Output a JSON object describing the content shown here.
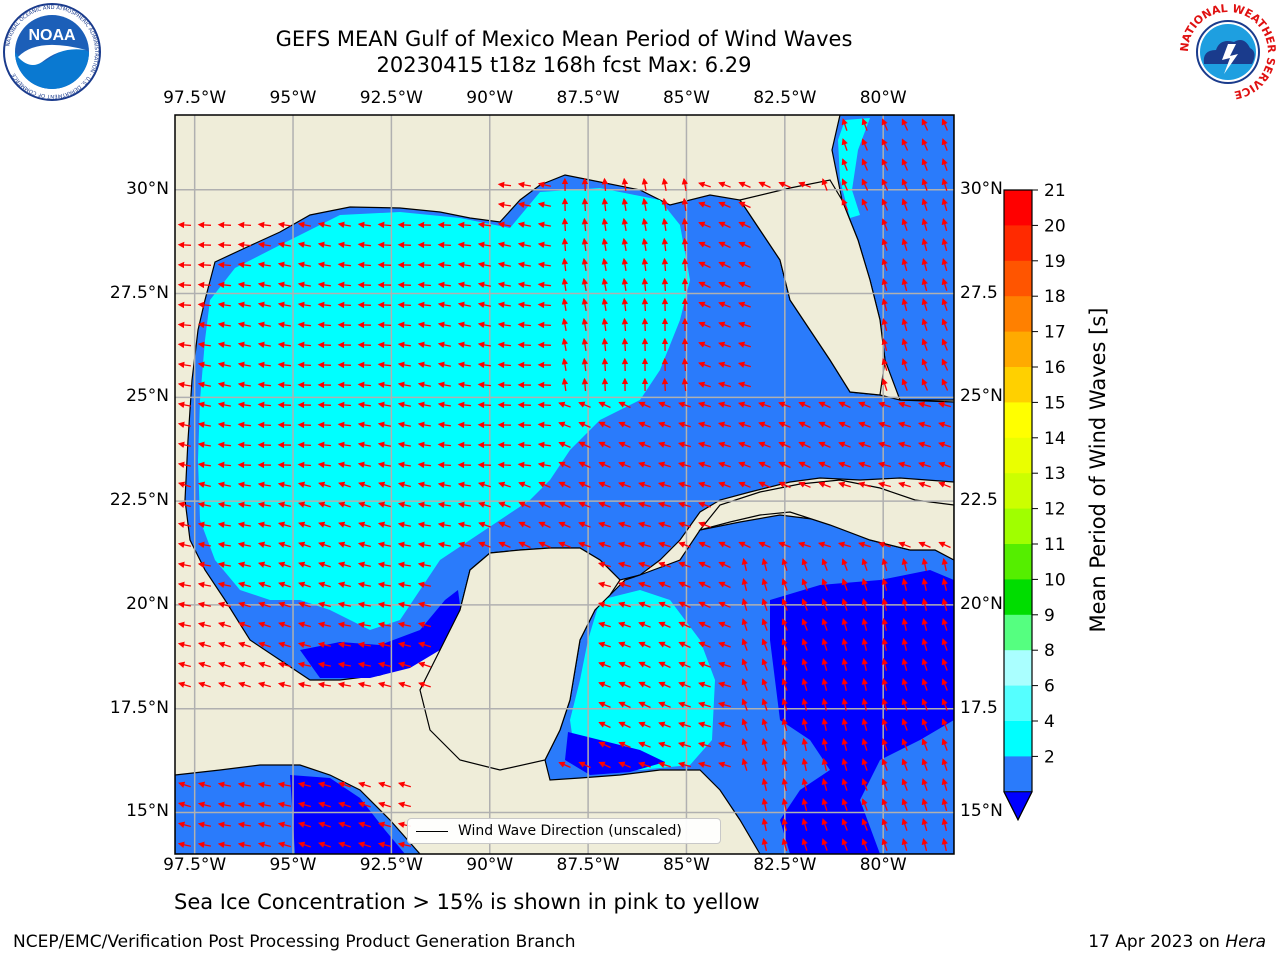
{
  "title": {
    "line1": "GEFS MEAN Gulf of Mexico Mean Period of Wind Waves",
    "line2": "20230415 t18z 168h fcst   Max: 6.29"
  },
  "logos": {
    "left": {
      "icon": "noaa-logo-icon",
      "text": "NOAA",
      "ring_text": "NATIONAL OCEANIC AND ATMOSPHERIC ADMINISTRATION · U.S. DEPARTMENT OF COMMERCE"
    },
    "right": {
      "icon": "nws-logo-icon",
      "ring_text": "NATIONAL WEATHER SERVICE"
    }
  },
  "map": {
    "lon_ticks": [
      "97.5°W",
      "95°W",
      "92.5°W",
      "90°W",
      "87.5°W",
      "85°W",
      "82.5°W",
      "80°W"
    ],
    "lat_ticks_left": [
      "30°N",
      "27.5°N",
      "25°N",
      "22.5°N",
      "20°N",
      "17.5°N",
      "15°N"
    ],
    "lat_ticks_right": [
      "30°N",
      "27.5",
      "25°N",
      "22.5",
      "20°N",
      "17.5",
      "15°N"
    ],
    "extent": {
      "lon": [
        -98,
        -78.2
      ],
      "lat": [
        14.0,
        31.8
      ]
    },
    "legend_label": "Wind Wave Direction (unscaled)",
    "colors": {
      "land": "#efedd9",
      "ocean_deep": "#0000ff",
      "ocean_mid": "#2a7bfb",
      "ocean_light": "#00ffff",
      "grid": "#b0b0b0",
      "arrow": "#ff0000"
    }
  },
  "colorbar": {
    "label": "Mean Period of Wind Waves [s]",
    "ticks": [
      "21",
      "20",
      "19",
      "18",
      "17",
      "16",
      "15",
      "14",
      "13",
      "12",
      "11",
      "10",
      "9",
      "8",
      "6",
      "4",
      "2"
    ],
    "colors": [
      "#ff0000",
      "#ff2a00",
      "#ff5500",
      "#ff8000",
      "#ffaa00",
      "#ffd000",
      "#ffff00",
      "#eaff00",
      "#ccff00",
      "#a0ff00",
      "#55ee00",
      "#00dd00",
      "#55ff80",
      "#aaffff",
      "#55ffff",
      "#00ffff",
      "#2a7bfb"
    ],
    "extend_color": "#0000ff"
  },
  "footer": {
    "note": "Sea Ice Concentration > 15% is shown in pink to yellow",
    "left": "NCEP/EMC/Verification Post Processing Product Generation Branch",
    "right_prefix": "17 Apr 2023 on ",
    "right_host": "Hera"
  }
}
